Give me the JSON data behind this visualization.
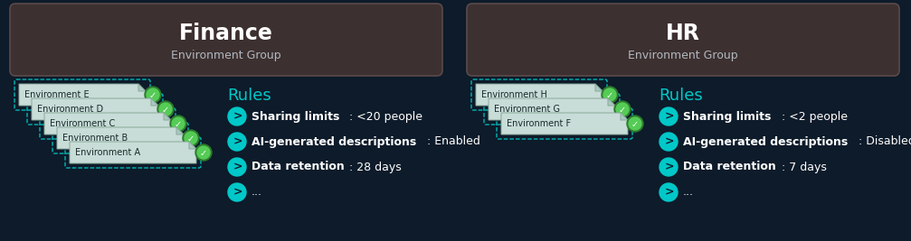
{
  "bg_color": "#0d1b2a",
  "panel_bg": "#3d3030",
  "panel_edge": "#5a4a4a",
  "teal": "#00c8c8",
  "white": "#ffffff",
  "light_gray": "#b0b8c0",
  "env_card_bg": "#c8dcd8",
  "env_card_edge": "#aabbaa",
  "green_badge": "#3a8a3a",
  "green_badge_light": "#55aa55",
  "finance": {
    "title": "Finance",
    "subtitle": "Environment Group",
    "environments": [
      "Environment E",
      "Environment D",
      "Environment C",
      "Environment B",
      "Environment A"
    ],
    "rules_title": "Rules",
    "rules": [
      {
        "bold": "Sharing limits",
        "normal": ": <20 people"
      },
      {
        "bold": "AI-generated descriptions",
        "normal": ": Enabled"
      },
      {
        "bold": "Data retention",
        "normal": ": 28 days"
      },
      {
        "bold": "...",
        "normal": ""
      }
    ]
  },
  "hr": {
    "title": "HR",
    "subtitle": "Environment Group",
    "environments": [
      "Environment H",
      "Environment G",
      "Environment F"
    ],
    "rules_title": "Rules",
    "rules": [
      {
        "bold": "Sharing limits",
        "normal": ": <2 people"
      },
      {
        "bold": "AI-generated descriptions",
        "normal": ": Disabled"
      },
      {
        "bold": "Data retention",
        "normal": ": 7 days"
      },
      {
        "bold": "...",
        "normal": ""
      }
    ]
  }
}
